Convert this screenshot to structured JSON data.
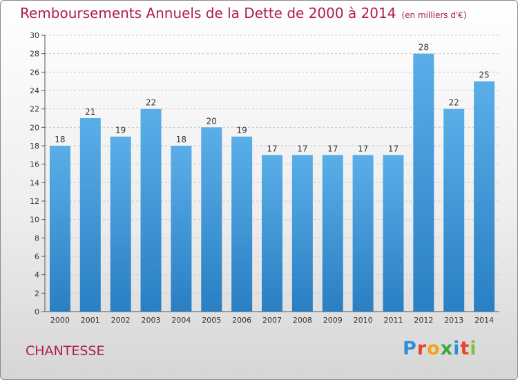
{
  "title": "Remboursements Annuels de la Dette de 2000 à 2014",
  "unit": "(en milliers d'€)",
  "commune": "CHANTESSE",
  "logo": "Proxiti",
  "colors": {
    "title": "#b01a56",
    "bar_light": "#5aaee8",
    "bar_dark": "#2a7fc3",
    "grid": "#c8c8c8"
  },
  "chart_data": {
    "type": "bar",
    "categories": [
      "2000",
      "2001",
      "2002",
      "2003",
      "2004",
      "2005",
      "2006",
      "2007",
      "2008",
      "2009",
      "2010",
      "2011",
      "2012",
      "2013",
      "2014"
    ],
    "values": [
      18,
      21,
      19,
      22,
      18,
      20,
      19,
      17,
      17,
      17,
      17,
      17,
      28,
      22,
      25
    ],
    "ylim": [
      0,
      30
    ],
    "yticks": [
      0,
      2,
      4,
      6,
      8,
      10,
      12,
      14,
      16,
      18,
      20,
      22,
      24,
      26,
      28,
      30
    ],
    "grid": true
  }
}
